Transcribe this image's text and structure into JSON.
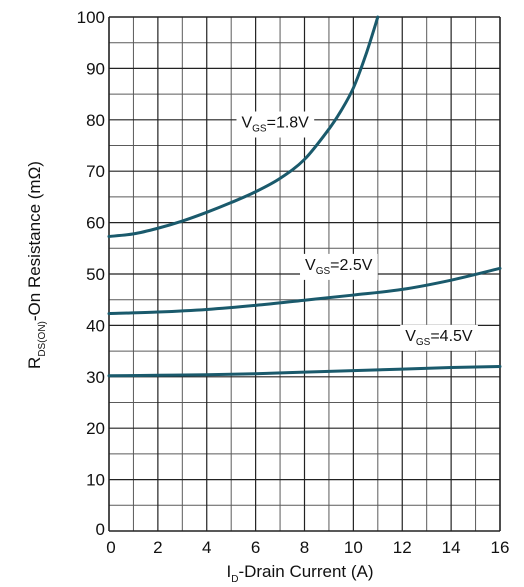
{
  "chart_data": {
    "type": "line",
    "title": "",
    "xlabel": {
      "main": "I",
      "sub": "D",
      "rest": "-Drain Current (A)"
    },
    "ylabel": {
      "main": "R",
      "sub": "DS(ON)",
      "rest": "-On Resistance (mΩ)"
    },
    "xlim": [
      0,
      16
    ],
    "ylim": [
      0,
      100
    ],
    "x_ticks": [
      "0",
      "2",
      "4",
      "6",
      "8",
      "10",
      "12",
      "14",
      "16"
    ],
    "y_ticks": [
      "0",
      "10",
      "20",
      "30",
      "40",
      "50",
      "60",
      "70",
      "80",
      "90",
      "100"
    ],
    "grid": true,
    "line_color": "#1a5a6c",
    "series": [
      {
        "label": {
          "main": "V",
          "sub": "GS",
          "rest": "=1.8V"
        },
        "label_at": {
          "x": 6.8,
          "y": 78.5
        },
        "points": [
          [
            0,
            57.3
          ],
          [
            1,
            57.8
          ],
          [
            2,
            58.9
          ],
          [
            3,
            60.3
          ],
          [
            4,
            62.0
          ],
          [
            5,
            63.9
          ],
          [
            6,
            66.0
          ],
          [
            7,
            68.6
          ],
          [
            8,
            72.3
          ],
          [
            9,
            78.2
          ],
          [
            9.5,
            81.8
          ],
          [
            10,
            86.2
          ],
          [
            10.5,
            92.5
          ],
          [
            11,
            100
          ]
        ]
      },
      {
        "label": {
          "main": "V",
          "sub": "GS",
          "rest": "=2.5V"
        },
        "label_at": {
          "x": 9.4,
          "y": 50.8
        },
        "points": [
          [
            0,
            42.3
          ],
          [
            2,
            42.6
          ],
          [
            4,
            43.1
          ],
          [
            6,
            43.9
          ],
          [
            8,
            44.9
          ],
          [
            10,
            45.9
          ],
          [
            12,
            47.0
          ],
          [
            14,
            48.8
          ],
          [
            16,
            51.1
          ]
        ]
      },
      {
        "label": {
          "main": "V",
          "sub": "GS",
          "rest": "=4.5V"
        },
        "label_at": {
          "x": 13.5,
          "y": 37.0
        },
        "points": [
          [
            0,
            30.2
          ],
          [
            2,
            30.3
          ],
          [
            4,
            30.4
          ],
          [
            6,
            30.6
          ],
          [
            8,
            30.9
          ],
          [
            10,
            31.2
          ],
          [
            12,
            31.5
          ],
          [
            14,
            31.8
          ],
          [
            16,
            32.0
          ]
        ]
      }
    ]
  }
}
